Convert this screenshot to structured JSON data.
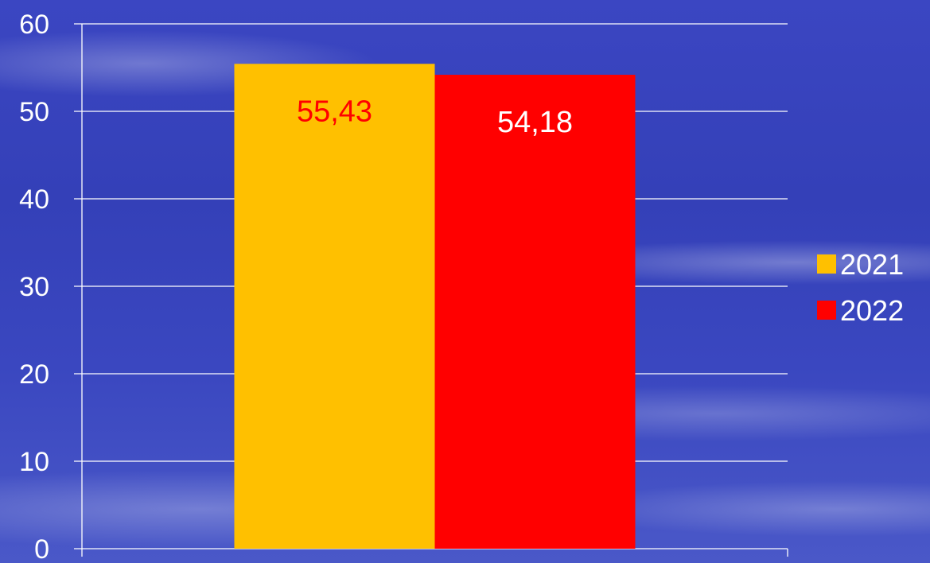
{
  "chart_data": {
    "type": "bar",
    "categories": [
      ""
    ],
    "series": [
      {
        "name": "2021",
        "values": [
          55.43
        ],
        "color": "#ffc000",
        "label": "55,43",
        "label_color": "#ff0000"
      },
      {
        "name": "2022",
        "values": [
          54.18
        ],
        "color": "#ff0000",
        "label": "54,18",
        "label_color": "#ffffff"
      }
    ],
    "title": "",
    "xlabel": "",
    "ylabel": "",
    "ylim": [
      0,
      60
    ],
    "yticks": [
      "0",
      "10",
      "20",
      "30",
      "40",
      "50",
      "60"
    ],
    "grid": true,
    "legend_position": "right",
    "gridline_color": "#ffffff",
    "text_color": "#ffffff"
  }
}
